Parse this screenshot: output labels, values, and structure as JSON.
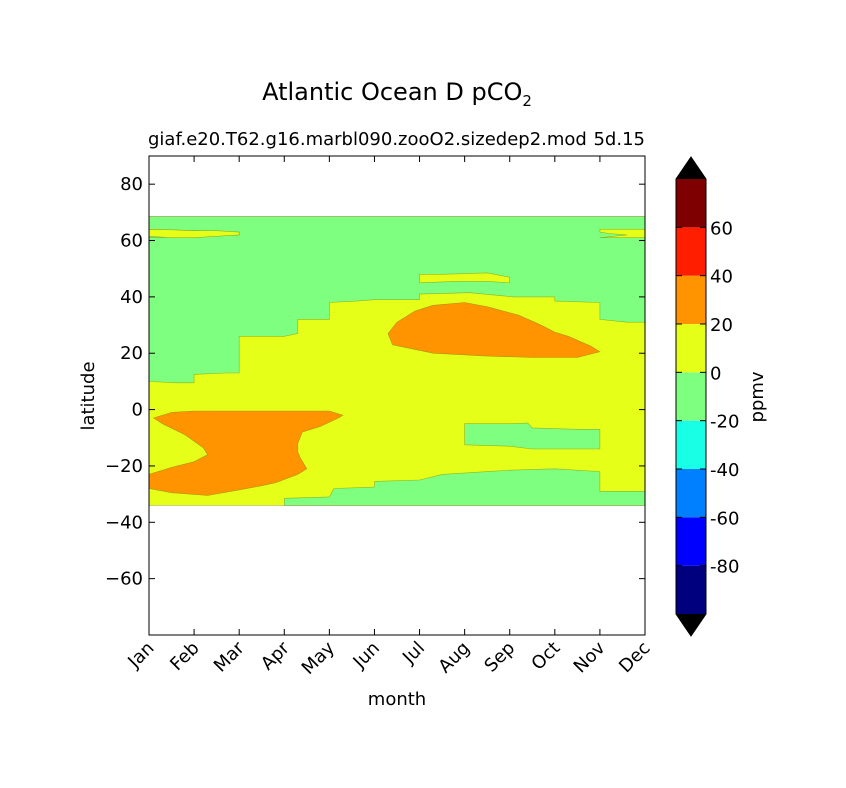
{
  "chart_data": {
    "type": "heatmap",
    "title": "Atlantic Ocean D pCO",
    "title_subscript": "2",
    "subtitle_left": "giaf.e20.T62.g16.marbl090.zooO2.sizedep2.mod",
    "subtitle_right": "5d.15",
    "xlabel": "month",
    "ylabel": "latitude",
    "x_categories": [
      "Jan",
      "Feb",
      "Mar",
      "Apr",
      "May",
      "Jun",
      "Jul",
      "Aug",
      "Sep",
      "Oct",
      "Nov",
      "Dec"
    ],
    "xlim": [
      0,
      11
    ],
    "ylim": [
      -80,
      90
    ],
    "y_ticks": [
      80,
      60,
      40,
      20,
      0,
      -20,
      -40,
      -60
    ],
    "y_tick_labels": [
      "80",
      "60",
      "40",
      "20",
      "0",
      "−20",
      "−40",
      "−60"
    ],
    "data_extent": {
      "lat_min": -34,
      "lat_max": 68.5
    },
    "colorbar": {
      "label": "ppmv",
      "levels": [
        -100,
        -80,
        -60,
        -40,
        -20,
        0,
        20,
        40,
        60,
        80
      ],
      "tick_values": [
        -80,
        -60,
        -40,
        -20,
        0,
        20,
        40,
        60
      ],
      "tick_labels": [
        "-80",
        "-60",
        "-40",
        "-20",
        "0",
        "20",
        "40",
        "60"
      ],
      "colors": [
        "#00007f",
        "#0000ff",
        "#007fff",
        "#19ffe5",
        "#7fff7f",
        "#e5ff19",
        "#ff9400",
        "#ff1e00",
        "#7f0000"
      ],
      "extend_low_color": "#000000",
      "extend_high_color": "#000000"
    },
    "regions": [
      {
        "level": "0 to 20",
        "color": "#e5ff19",
        "polygon": [
          [
            0,
            -34
          ],
          [
            11,
            -34
          ],
          [
            11,
            68.5
          ],
          [
            0,
            68.5
          ]
        ]
      },
      {
        "level": "-20 to 0",
        "color": "#7fff7f",
        "polygon": [
          [
            0,
            68.5
          ],
          [
            11,
            68.5
          ],
          [
            11,
            31
          ],
          [
            10.6,
            31
          ],
          [
            10,
            32
          ],
          [
            10,
            38
          ],
          [
            9,
            38.5
          ],
          [
            9,
            40
          ],
          [
            8.1,
            40
          ],
          [
            7.1,
            41.5
          ],
          [
            6,
            41
          ],
          [
            6,
            39
          ],
          [
            5,
            39
          ],
          [
            4.6,
            38.5
          ],
          [
            4,
            38
          ],
          [
            4,
            32
          ],
          [
            3.3,
            32
          ],
          [
            3.3,
            27
          ],
          [
            3,
            26
          ],
          [
            2,
            26
          ],
          [
            2,
            13
          ],
          [
            1.7,
            13
          ],
          [
            1,
            12.5
          ],
          [
            1,
            9.5
          ],
          [
            0.6,
            9.5
          ],
          [
            0,
            10
          ]
        ]
      },
      {
        "level": "-20 to 0",
        "color": "#7fff7f",
        "polygon": [
          [
            0,
            61
          ],
          [
            2,
            62
          ],
          [
            2,
            63
          ],
          [
            0,
            64
          ]
        ]
      },
      {
        "level": "0 to 20",
        "color": "#e5ff19",
        "polygon": [
          [
            0,
            61.5
          ],
          [
            0.5,
            61
          ],
          [
            1,
            61
          ],
          [
            1.5,
            61.5
          ],
          [
            2,
            62
          ],
          [
            2,
            63
          ],
          [
            1.5,
            63.5
          ],
          [
            1,
            63.5
          ],
          [
            0.5,
            63.8
          ],
          [
            0,
            64
          ]
        ]
      },
      {
        "level": "0 to 20",
        "color": "#e5ff19",
        "polygon": [
          [
            10,
            61
          ],
          [
            11,
            61
          ],
          [
            11,
            64
          ],
          [
            10,
            64
          ],
          [
            10,
            63
          ],
          [
            10.2,
            62.5
          ],
          [
            10.6,
            62
          ]
        ]
      },
      {
        "level": "0 to 20",
        "color": "#e5ff19",
        "polygon": [
          [
            6,
            45
          ],
          [
            6.8,
            45.5
          ],
          [
            7.5,
            45.5
          ],
          [
            8,
            45
          ],
          [
            8,
            47
          ],
          [
            7.5,
            48.5
          ],
          [
            6.5,
            48
          ],
          [
            6,
            48
          ]
        ]
      },
      {
        "level": "-20 to 0",
        "color": "#7fff7f",
        "polygon": [
          [
            3,
            -34
          ],
          [
            3,
            -31.5
          ],
          [
            4,
            -31
          ],
          [
            4.1,
            -28
          ],
          [
            5,
            -27.5
          ],
          [
            5,
            -25.5
          ],
          [
            6,
            -25
          ],
          [
            6.5,
            -23
          ],
          [
            7.5,
            -22
          ],
          [
            8,
            -21.5
          ],
          [
            9,
            -21
          ],
          [
            10,
            -22
          ],
          [
            10,
            -29
          ],
          [
            10.5,
            -29
          ],
          [
            11,
            -29
          ],
          [
            11,
            -34
          ]
        ]
      },
      {
        "level": "-20 to 0",
        "color": "#7fff7f",
        "polygon": [
          [
            7,
            -5
          ],
          [
            8,
            -5
          ],
          [
            8.4,
            -4.8
          ],
          [
            8.5,
            -6.5
          ],
          [
            9.5,
            -7
          ],
          [
            10,
            -7
          ],
          [
            10,
            -14
          ],
          [
            9.5,
            -14
          ],
          [
            8.5,
            -14
          ],
          [
            8,
            -13
          ],
          [
            7,
            -12.5
          ]
        ]
      },
      {
        "level": "20 to 40",
        "color": "#ff9400",
        "polygon": [
          [
            0.1,
            -3
          ],
          [
            0.5,
            -1
          ],
          [
            1,
            -0.5
          ],
          [
            2,
            -0.5
          ],
          [
            3,
            -0.5
          ],
          [
            4,
            -0.5
          ],
          [
            4.3,
            -2
          ],
          [
            4.2,
            -3
          ],
          [
            3.8,
            -6
          ],
          [
            3.4,
            -8
          ],
          [
            3.3,
            -12
          ],
          [
            3.3,
            -15
          ],
          [
            3.35,
            -17
          ],
          [
            3.5,
            -21
          ],
          [
            3.3,
            -23
          ],
          [
            2.8,
            -26
          ],
          [
            2.5,
            -27
          ],
          [
            2,
            -28.5
          ],
          [
            1.3,
            -30.5
          ],
          [
            0.5,
            -29.5
          ],
          [
            0,
            -28
          ],
          [
            0,
            -23
          ],
          [
            0.5,
            -20.5
          ],
          [
            1,
            -18.5
          ],
          [
            1.3,
            -16
          ],
          [
            1.2,
            -13.5
          ],
          [
            0.8,
            -9
          ],
          [
            0.3,
            -5
          ]
        ]
      },
      {
        "level": "20 to 40",
        "color": "#ff9400",
        "polygon": [
          [
            5.4,
            23
          ],
          [
            6.3,
            20
          ],
          [
            7.5,
            19
          ],
          [
            8.5,
            18.5
          ],
          [
            9.5,
            18.5
          ],
          [
            10,
            20.5
          ],
          [
            9.8,
            22.5
          ],
          [
            9.3,
            26
          ],
          [
            9,
            27.5
          ],
          [
            8.7,
            30
          ],
          [
            8.2,
            33.5
          ],
          [
            7.5,
            36.5
          ],
          [
            7,
            38
          ],
          [
            6.3,
            37
          ],
          [
            5.9,
            35
          ],
          [
            5.5,
            31
          ],
          [
            5.3,
            27
          ],
          [
            5.35,
            25
          ]
        ]
      }
    ]
  }
}
